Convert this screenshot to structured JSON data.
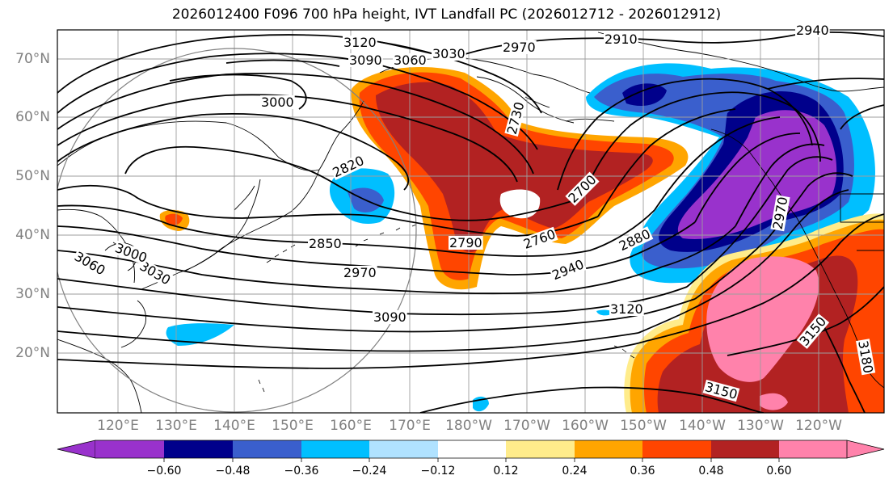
{
  "title": "2026012400 F096 700 hPa height, IVT Landfall PC (2026012712 - 2026012912)",
  "lat_labels": [
    "70°N",
    "60°N",
    "50°N",
    "40°N",
    "30°N",
    "20°N"
  ],
  "lon_labels": [
    "120°E",
    "130°E",
    "140°E",
    "150°E",
    "160°E",
    "170°E",
    "180°W",
    "170°W",
    "160°W",
    "150°W",
    "140°W",
    "130°W",
    "120°W"
  ],
  "colorbar": {
    "ticks": [
      "−0.60",
      "−0.48",
      "−0.36",
      "−0.24",
      "−0.12",
      "0.12",
      "0.24",
      "0.36",
      "0.48",
      "0.60"
    ],
    "colors": [
      "#9932cc",
      "#00008b",
      "#3a5fcd",
      "#00bfff",
      "#b0e2ff",
      "#ffffff",
      "#ffec8b",
      "#ffa500",
      "#ff4500",
      "#b22222",
      "#ff82ab"
    ]
  },
  "contour_labels": [
    "3120",
    "3090",
    "3060",
    "3030",
    "2970",
    "2910",
    "2940",
    "3000",
    "2730",
    "2820",
    "2700",
    "2850",
    "2790",
    "2760",
    "2880",
    "2970",
    "2940",
    "3030",
    "3060",
    "3000",
    "3090",
    "3120",
    "3150",
    "3180",
    "3150",
    "2970"
  ]
}
